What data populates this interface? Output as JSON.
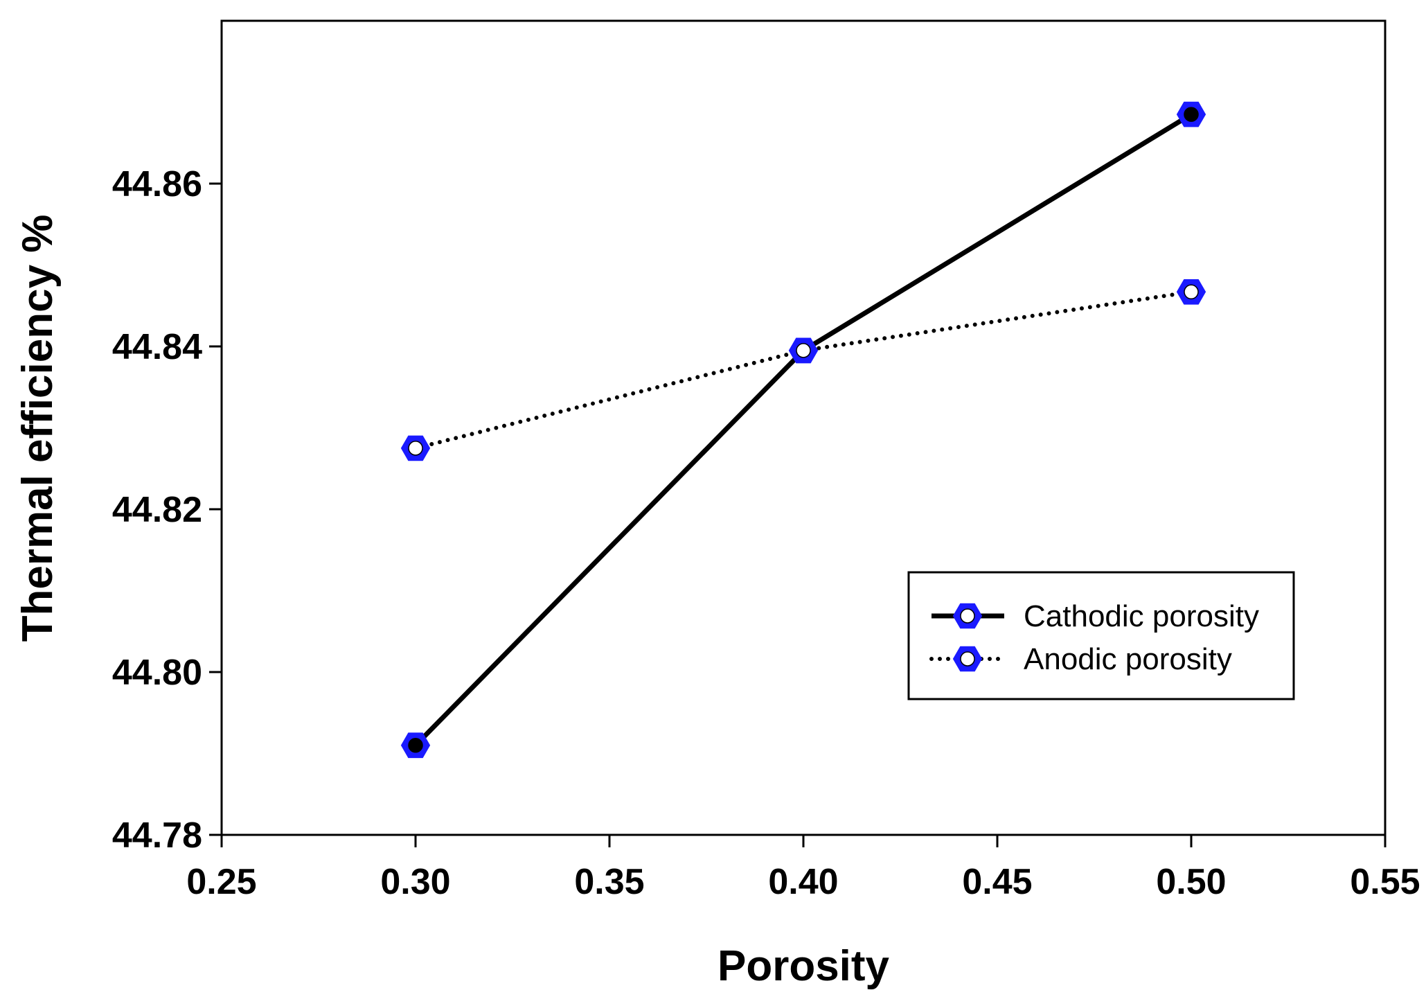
{
  "chart_data": {
    "type": "line",
    "title": "",
    "xlabel": "Porosity",
    "ylabel": "Thermal efficiency %",
    "xlim": [
      0.25,
      0.55
    ],
    "ylim": [
      44.78,
      44.88
    ],
    "x_ticks": [
      0.25,
      0.3,
      0.35,
      0.4,
      0.45,
      0.5,
      0.55
    ],
    "x_tick_labels": [
      "0.25",
      "0.30",
      "0.35",
      "0.40",
      "0.45",
      "0.50",
      "0.55"
    ],
    "y_ticks": [
      44.78,
      44.8,
      44.82,
      44.84,
      44.86
    ],
    "y_tick_labels": [
      "44.78",
      "44.80",
      "44.82",
      "44.84",
      "44.86"
    ],
    "x": [
      0.3,
      0.4,
      0.5
    ],
    "series": [
      {
        "name": "Cathodic porosity",
        "values": [
          44.791,
          44.8395,
          44.8685
        ],
        "line": "solid",
        "marker_fill": "#000000"
      },
      {
        "name": "Anodic porosity",
        "values": [
          44.8275,
          44.8395,
          44.8467
        ],
        "line": "dotted",
        "marker_fill": "#ffffff"
      }
    ],
    "legend": {
      "position": "lower-right"
    },
    "grid": false,
    "colors": {
      "line": "#000000",
      "marker": "#1a1aff",
      "axis": "#000000"
    }
  }
}
